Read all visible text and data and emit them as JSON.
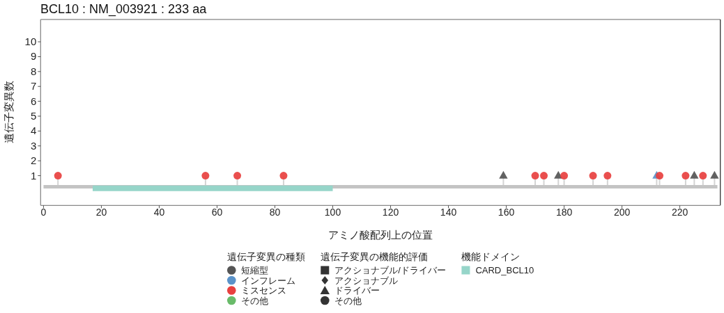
{
  "chart_data": {
    "type": "lollipop",
    "title": "BCL10 : NM_003921 : 233 aa",
    "xlabel": "アミノ酸配列上の位置",
    "ylabel": "遺伝子変異数",
    "xlim": [
      -1,
      234
    ],
    "ylim": [
      -1,
      11.5
    ],
    "xticks": [
      0,
      20,
      40,
      60,
      80,
      100,
      120,
      140,
      160,
      180,
      200,
      220
    ],
    "yticks": [
      1,
      2,
      3,
      4,
      5,
      6,
      7,
      8,
      9,
      10
    ],
    "legend": "bottom",
    "legend_title": [
      "遺伝子変異の種類",
      "遺伝子変異の機能的評価",
      "機能ドメイン"
    ],
    "series": [
      {
        "type": "line",
        "color": "#c4c4c4",
        "x": [
          0,
          233
        ],
        "values": [
          0.25,
          0.25
        ]
      },
      {
        "type": "line",
        "name": "CARD_BCL10",
        "color": "#96d5c9",
        "x": [
          17,
          100
        ],
        "values": [
          0.15,
          0.15
        ]
      },
      {
        "name": "短縮型",
        "color": "#555555",
        "marker": "triangle",
        "x": [
          159,
          178,
          225,
          232
        ],
        "values": [
          1,
          1,
          1,
          1
        ]
      },
      {
        "name": "インフレーム",
        "color": "#5b93c9",
        "marker": "triangle",
        "x": [
          212
        ],
        "values": [
          1
        ]
      },
      {
        "name": "ミスセンス",
        "color": "#e8403f",
        "marker": "circle",
        "x": [
          5,
          56,
          67,
          83,
          170,
          173,
          180,
          190,
          195,
          213,
          222,
          228
        ],
        "values": [
          1,
          1,
          1,
          1,
          1,
          1,
          1,
          1,
          1,
          1,
          1,
          1
        ]
      },
      {
        "name": "その他",
        "color": "#69bb6a"
      },
      {
        "name": "アクショナブル/ドライバー",
        "color": "#333333",
        "marker": "square"
      },
      {
        "name": "アクショナブル",
        "color": "#333333",
        "marker": "diamond"
      },
      {
        "name": "ドライバー",
        "color": "#333333",
        "marker": "triangle"
      },
      {
        "name": "その他",
        "color": "#333333",
        "marker": "circle"
      }
    ]
  }
}
